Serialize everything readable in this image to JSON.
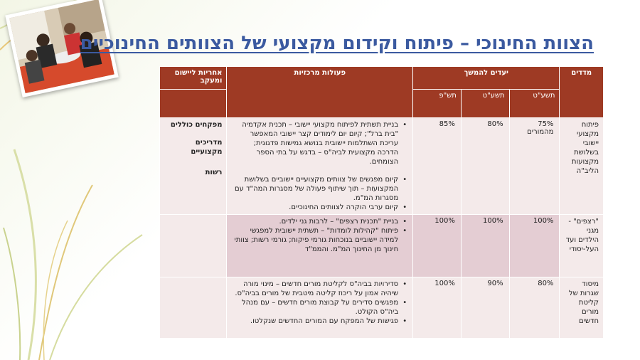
{
  "title": "הצוות החינוכי – פיתוח וקידום מקצועי של הצוותים החינוכיים",
  "table": {
    "headers": {
      "indicators": "מדדים",
      "goals": "יעדים להמשך",
      "activities": "פעולות מרכזיות",
      "responsibility": "אחריות ליישום ומעקב"
    },
    "years": [
      "תשע\"ט",
      "תשע\"ט",
      "תש\"פ"
    ],
    "rows": [
      {
        "indicator": "פיתוח מקצועי יישובי בשלושת מקצועות הליב\"ה",
        "goals": [
          "75% מהמורים",
          "80%",
          "85%"
        ],
        "activities": [
          "בניית תשתית לפיתוח מקצועי יישובי – תכנית אקדמיה \"בית ברל\"; קיום יום לימודים קצר יישובי המאפשר עריכת השתלמות יישובית בנושא גמישות פדגוגית; הדרכה מקצועית לביה\"ס – בדגש על בתי הספר הצומחים.",
          "קיום מפגשים של צוותים מקצועיים יישוביים בשלושת המקצועות – תוך שיתוף פעולה של מסגרות המה\"ד עם מסגרות המ\"מ.",
          "קיום ערבי הוקרה לצוותים החינוכיים."
        ],
        "responsibility": [
          "מפקחים כוללים",
          "מדריכים מקצועיים",
          "רשות"
        ]
      },
      {
        "indicator": "\"רצפים\" - מגני הילדים ועד העל-יסודי",
        "goals": [
          "100%",
          "100%",
          "100%"
        ],
        "activities": [
          "בניית \"תכנית רצפים\" – לרבות גני ילדים.",
          "פיתוח \"קהילות לומדות\" – תשתית יישובית למפגשי למידה יישוביים בנוכחות גורמי פיקוח; גורמי רשות; צוותי חינוך מן החינוך המ\"מ. והממ\"ד"
        ],
        "responsibility": []
      },
      {
        "indicator": "מיסוד שגרות של קליטת מורים חדשים",
        "goals": [
          "80%",
          "90%",
          "100%"
        ],
        "activities": [
          "סדירויות בביה\"ס לקליטת מורים חדשים – מינוי מורה שיהיה אמון על ריכוז קליטה מיטבית של מורים בביה\"ס.",
          "מפגשים סדירים על קבוצת מורים חדשים – עם מנהל ביה\"ס הקולט.",
          "פגישות של המפקח עם המורים החדשים שנקלטו."
        ],
        "responsibility": []
      }
    ]
  },
  "colors": {
    "header": "#9e3a24",
    "title": "#3b5aa0",
    "row_light": "#f4eaea",
    "row_dark": "#e4cdd3"
  },
  "icons": [
    "classroom-photo",
    "grass-decoration"
  ]
}
